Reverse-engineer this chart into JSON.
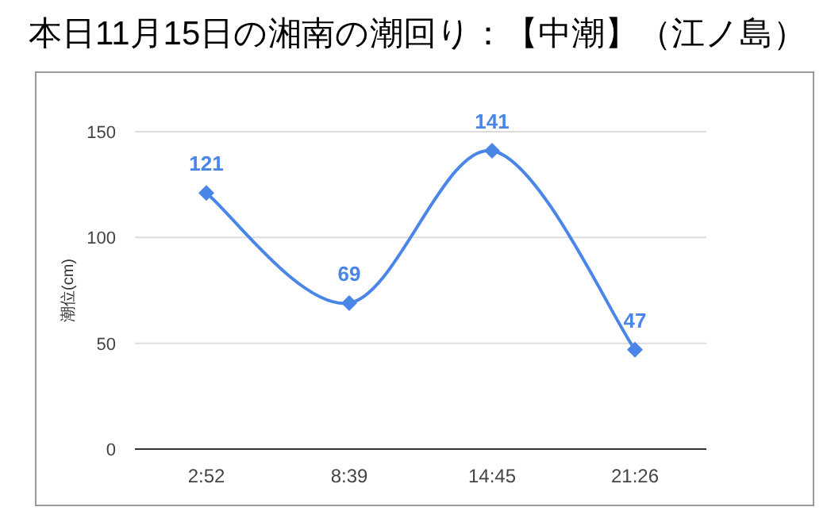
{
  "chart_data": {
    "type": "line",
    "title": "本日11月15日の湘南の潮回り：【中潮】（江ノ島）",
    "ylabel": "潮位(cm)",
    "categories": [
      "2:52",
      "8:39",
      "14:45",
      "21:26"
    ],
    "series": [
      {
        "color": "#4a86e8",
        "values": [
          121,
          69,
          141,
          47
        ]
      }
    ],
    "ylim": [
      0,
      150
    ],
    "yticks": [
      0,
      50,
      100,
      150
    ],
    "grid": "y",
    "marker": "diamond",
    "data_labels": true
  }
}
